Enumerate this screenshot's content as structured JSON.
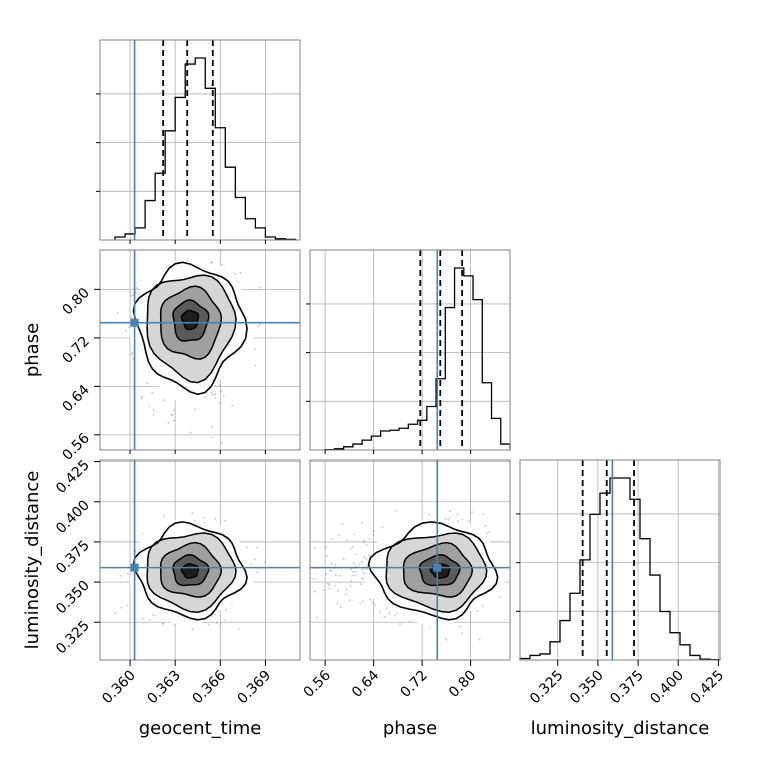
{
  "chart_data": {
    "type": "corner",
    "parameters": [
      "geocent_time",
      "phase",
      "luminosity_distance"
    ],
    "truths": {
      "geocent_time": 0.3603,
      "phase": 0.745,
      "luminosity_distance": 0.359
    },
    "truth_color": "#4682b4",
    "ranges": {
      "geocent_time": [
        0.358,
        0.3713
      ],
      "phase": [
        0.535,
        0.865
      ],
      "luminosity_distance": [
        0.3015,
        0.426
      ]
    },
    "ticks": {
      "geocent_time": [
        0.36,
        0.363,
        0.366,
        0.369
      ],
      "phase": [
        0.56,
        0.64,
        0.72,
        0.8
      ],
      "luminosity_distance": [
        0.325,
        0.35,
        0.375,
        0.4,
        0.425
      ]
    },
    "tick_labels": {
      "geocent_time": [
        "0.360",
        "0.363",
        "0.366",
        "0.369"
      ],
      "phase": [
        "0.56",
        "0.64",
        "0.72",
        "0.80"
      ],
      "luminosity_distance": [
        "0.325",
        "0.350",
        "0.375",
        "0.400",
        "0.425"
      ]
    },
    "quantiles": {
      "geocent_time": [
        0.3622,
        0.3638,
        0.3655
      ],
      "phase": [
        0.717,
        0.75,
        0.786
      ],
      "luminosity_distance": [
        0.3405,
        0.3555,
        0.3725
      ]
    },
    "histograms": {
      "geocent_time": [
        1,
        2,
        4,
        13,
        22,
        36,
        47,
        58,
        60,
        50,
        37,
        24,
        14,
        7,
        4,
        1,
        0.4,
        0.2
      ],
      "phase": [
        0.1,
        0.3,
        0.8,
        1.5,
        2.5,
        3.5,
        4.8,
        5,
        5.5,
        6.5,
        7.5,
        11,
        18,
        36,
        46,
        44,
        38,
        17,
        8,
        1.5
      ],
      "luminosity_distance": [
        0.5,
        1.5,
        2,
        6,
        13,
        22,
        33,
        48,
        55,
        60,
        60,
        53,
        40,
        28,
        16,
        9,
        5,
        1.5,
        0.3,
        0.1
      ]
    },
    "grid": true,
    "xlabels": [
      "geocent_time",
      "phase",
      "luminosity_distance"
    ],
    "ylabels": [
      "phase",
      "luminosity_distance"
    ]
  }
}
